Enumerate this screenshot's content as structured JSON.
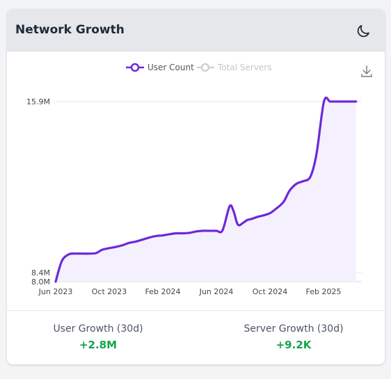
{
  "card": {
    "title": "Network Growth",
    "theme_icon": "moon-icon"
  },
  "toolbar": {
    "download_icon": "download-icon"
  },
  "chart_data": {
    "type": "line",
    "x_axis_type": "date",
    "x_tick_labels": [
      "Jun 2023",
      "Oct 2023",
      "Feb 2024",
      "Jun 2024",
      "Oct 2024",
      "Feb 2025"
    ],
    "y_tick_labels": [
      "8.0M",
      "8.4M",
      "15.9M"
    ],
    "ylim": [
      8.0,
      15.9
    ],
    "grid": "horizontal",
    "legend_position": "top-center",
    "series": [
      {
        "name": "User Count",
        "color": "#6d28d9",
        "visible": true,
        "area_fill": true,
        "x": [
          "2023-06-01",
          "2023-06-15",
          "2023-07-01",
          "2023-07-15",
          "2023-08-01",
          "2023-08-15",
          "2023-09-01",
          "2023-09-15",
          "2023-10-01",
          "2023-10-15",
          "2023-11-01",
          "2023-11-15",
          "2023-12-01",
          "2023-12-15",
          "2024-01-01",
          "2024-01-15",
          "2024-02-01",
          "2024-02-15",
          "2024-03-01",
          "2024-03-15",
          "2024-04-01",
          "2024-04-15",
          "2024-05-01",
          "2024-05-15",
          "2024-06-01",
          "2024-06-15",
          "2024-07-01",
          "2024-07-10",
          "2024-07-20",
          "2024-08-01",
          "2024-08-10",
          "2024-08-20",
          "2024-09-01",
          "2024-09-15",
          "2024-10-01",
          "2024-10-15",
          "2024-11-01",
          "2024-11-15",
          "2024-12-01",
          "2024-12-15",
          "2025-01-01",
          "2025-01-15",
          "2025-02-01",
          "2025-02-15",
          "2025-03-01",
          "2025-03-15",
          "2025-04-01",
          "2025-04-15",
          "2025-05-01"
        ],
        "y": [
          8.0,
          8.9,
          9.2,
          9.23,
          9.23,
          9.23,
          9.25,
          9.4,
          9.47,
          9.52,
          9.6,
          9.7,
          9.76,
          9.84,
          9.94,
          10.0,
          10.03,
          10.08,
          10.12,
          10.12,
          10.14,
          10.2,
          10.23,
          10.23,
          10.23,
          10.25,
          11.3,
          11.1,
          10.5,
          10.58,
          10.7,
          10.75,
          10.83,
          10.9,
          11.0,
          11.2,
          11.5,
          12.0,
          12.3,
          12.4,
          12.6,
          13.6,
          15.9,
          15.9,
          15.9,
          15.9,
          15.9,
          15.9,
          15.9
        ]
      },
      {
        "name": "Total Servers",
        "color": "#c7c9cf",
        "visible": false
      }
    ]
  },
  "stats": {
    "user_growth_label": "User Growth (30d)",
    "user_growth_value": "+2.8M",
    "server_growth_label": "Server Growth (30d)",
    "server_growth_value": "+9.2K"
  }
}
